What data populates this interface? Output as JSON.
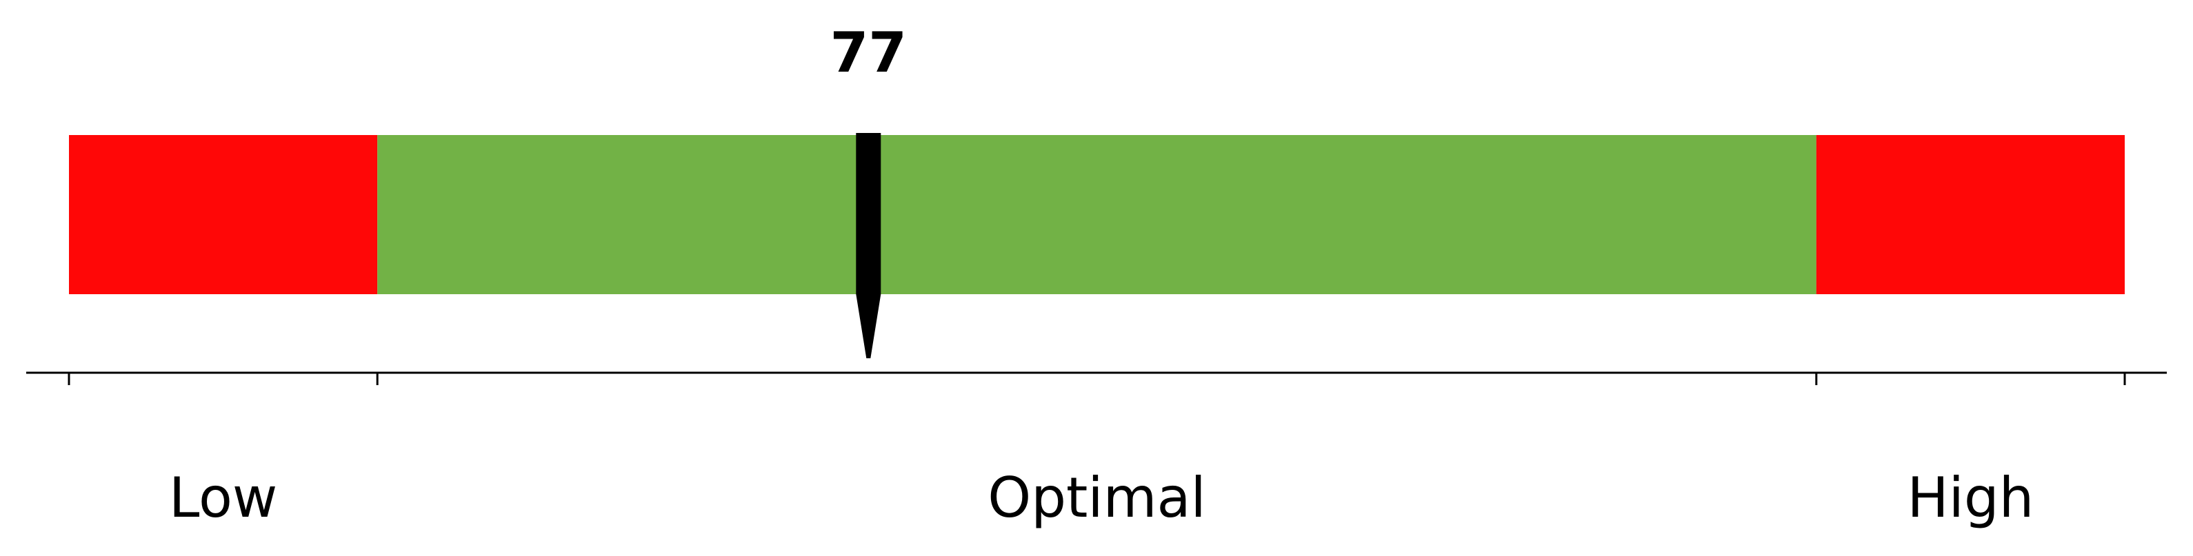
{
  "chart_data": {
    "type": "range-gauge",
    "title": "",
    "value": 77,
    "value_label": "77",
    "range": [
      70,
      85
    ],
    "boundaries": [
      70,
      72.7,
      85.3,
      88
    ],
    "segments": [
      {
        "name": "Low",
        "from": 70,
        "to": 72.7,
        "color": "#ff0707"
      },
      {
        "name": "Optimal",
        "from": 72.7,
        "to": 85.3,
        "color": "#72b246"
      },
      {
        "name": "High",
        "from": 85.3,
        "to": 88,
        "color": "#ff0707"
      }
    ],
    "category_labels": [
      "Low",
      "Optimal",
      "High"
    ],
    "marker_color": "#000000"
  }
}
